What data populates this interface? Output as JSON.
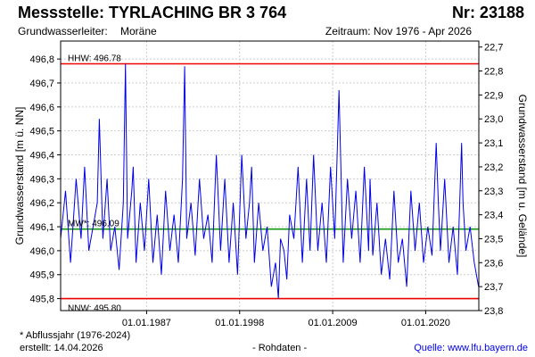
{
  "header": {
    "station_label": "Messstelle: TYRLACHING BR 3 764",
    "number_label": "Nr: 23188",
    "aquifer_label": "Grundwasserleiter:",
    "aquifer_value": "Moräne",
    "period_label": "Zeitraum: Nov 1976 - Apr 2026"
  },
  "footer": {
    "note": "* Abflussjahr (1976-2024)",
    "created": "erstellt:  14.04.2026",
    "data_kind": "- Rohdaten -",
    "source_label": "Quelle: ",
    "source_link": "www.lfu.bayern.de"
  },
  "colors": {
    "series": "#0000e6",
    "extreme_lines": "#ee0000",
    "mean_line": "#119911",
    "grid": "#cccccc"
  },
  "chart_data": {
    "type": "line",
    "title": "",
    "ylabel": "Grundwasserstand [m ü. NN]",
    "ylabel_right": "Grundwasserstand [m u. Gelände]",
    "xlim": [
      "1976-11-01",
      "2026-04-14"
    ],
    "ylim": [
      495.75,
      496.875
    ],
    "ylim_right": [
      23.8,
      22.675
    ],
    "x_ticks": [
      "01.01.1987",
      "01.01.1998",
      "01.01.2009",
      "01.01.2020"
    ],
    "x_tick_dates": [
      "1987-01-01",
      "1998-01-01",
      "2009-01-01",
      "2020-01-01"
    ],
    "y_ticks_left": [
      "495,8",
      "495,9",
      "496,0",
      "496,1",
      "496,2",
      "496,3",
      "496,4",
      "496,5",
      "496,6",
      "496,7",
      "496,8"
    ],
    "y_tick_values_left": [
      495.8,
      495.9,
      496.0,
      496.1,
      496.2,
      496.3,
      496.4,
      496.5,
      496.6,
      496.7,
      496.8
    ],
    "y_ticks_right": [
      "22,7",
      "22,8",
      "22,9",
      "23,0",
      "23,1",
      "23,2",
      "23,3",
      "23,4",
      "23,5",
      "23,6",
      "23,7",
      "23,8"
    ],
    "y_tick_values_right": [
      22.7,
      22.8,
      22.9,
      23.0,
      23.1,
      23.2,
      23.3,
      23.4,
      23.5,
      23.6,
      23.7,
      23.8
    ],
    "grid": true,
    "reference_lines": [
      {
        "label": "HHW: 496.78",
        "value": 496.78,
        "kind": "extreme"
      },
      {
        "label": "MW*: 496.09",
        "value": 496.09,
        "kind": "mean"
      },
      {
        "label": "NNW: 495.80",
        "value": 495.8,
        "kind": "extreme"
      }
    ],
    "series": [
      {
        "x": [
          "1976-11-01",
          "1977-06-01",
          "1978-01-01",
          "1978-09-01",
          "1979-04-01",
          "1979-09-01",
          "1980-03-01",
          "1980-09-01",
          "1981-03-01",
          "1981-06-01",
          "1981-11-01",
          "1982-05-01",
          "1982-10-01",
          "1983-04-01",
          "1983-10-01",
          "1984-04-01",
          "1984-07-01",
          "1984-10-01",
          "1985-04-01",
          "1985-06-01",
          "1985-10-01",
          "1986-04-01",
          "1986-10-01",
          "1987-04-01",
          "1987-10-01",
          "1988-04-01",
          "1988-10-01",
          "1989-04-01",
          "1989-10-01",
          "1990-04-01",
          "1990-10-01",
          "1991-04-01",
          "1991-07-01",
          "1991-10-01",
          "1992-04-01",
          "1992-10-01",
          "1993-04-01",
          "1993-10-01",
          "1994-04-01",
          "1994-10-01",
          "1995-04-01",
          "1995-10-01",
          "1996-04-01",
          "1996-10-01",
          "1997-04-01",
          "1997-10-01",
          "1998-04-01",
          "1998-10-01",
          "1999-03-01",
          "1999-06-01",
          "1999-10-01",
          "2000-04-01",
          "2000-10-01",
          "2001-04-01",
          "2001-10-01",
          "2002-04-01",
          "2002-08-01",
          "2002-11-01",
          "2003-04-01",
          "2003-08-01",
          "2003-12-01",
          "2004-06-01",
          "2004-12-01",
          "2005-06-01",
          "2005-12-01",
          "2006-05-01",
          "2006-10-01",
          "2007-04-01",
          "2007-10-01",
          "2008-04-01",
          "2008-10-01",
          "2009-04-01",
          "2009-10-01",
          "2010-04-01",
          "2010-10-01",
          "2011-04-01",
          "2011-10-01",
          "2012-04-01",
          "2012-10-01",
          "2013-04-01",
          "2013-06-01",
          "2013-10-01",
          "2014-04-01",
          "2014-10-01",
          "2015-04-01",
          "2015-10-01",
          "2016-04-01",
          "2016-10-01",
          "2017-04-01",
          "2017-10-01",
          "2018-04-01",
          "2018-10-01",
          "2019-04-01",
          "2019-10-01",
          "2020-04-01",
          "2020-10-01",
          "2021-04-01",
          "2021-07-01",
          "2021-10-01",
          "2022-04-01",
          "2022-10-01",
          "2023-04-01",
          "2023-10-01",
          "2024-04-01",
          "2024-06-01",
          "2024-10-01",
          "2025-04-01",
          "2025-10-01",
          "2026-04-01"
        ],
        "y": [
          496.05,
          496.25,
          495.95,
          496.3,
          496.05,
          496.35,
          496.0,
          496.1,
          496.2,
          496.55,
          496.05,
          496.3,
          496.0,
          496.1,
          495.92,
          496.2,
          496.78,
          496.05,
          496.25,
          496.35,
          495.95,
          496.2,
          496.0,
          496.3,
          495.95,
          496.15,
          495.9,
          496.25,
          496.0,
          496.15,
          495.95,
          496.3,
          496.77,
          496.05,
          496.2,
          495.98,
          496.3,
          496.05,
          496.15,
          495.95,
          496.4,
          496.0,
          496.3,
          495.95,
          496.2,
          495.9,
          496.4,
          496.05,
          496.2,
          496.35,
          495.95,
          496.2,
          496.0,
          496.1,
          495.85,
          495.95,
          495.8,
          496.05,
          496.0,
          495.88,
          496.15,
          496.05,
          496.35,
          495.95,
          496.3,
          496.0,
          496.4,
          496.0,
          496.2,
          495.95,
          496.35,
          496.05,
          496.67,
          495.95,
          496.3,
          496.05,
          496.25,
          495.95,
          496.35,
          496.0,
          496.3,
          495.98,
          496.2,
          495.9,
          496.05,
          495.88,
          496.25,
          495.95,
          496.05,
          495.85,
          496.25,
          496.0,
          496.2,
          495.95,
          496.1,
          495.98,
          496.45,
          496.2,
          496.0,
          496.3,
          495.95,
          496.1,
          495.9,
          496.45,
          496.2,
          496.0,
          496.1,
          495.95,
          495.85
        ]
      }
    ]
  }
}
